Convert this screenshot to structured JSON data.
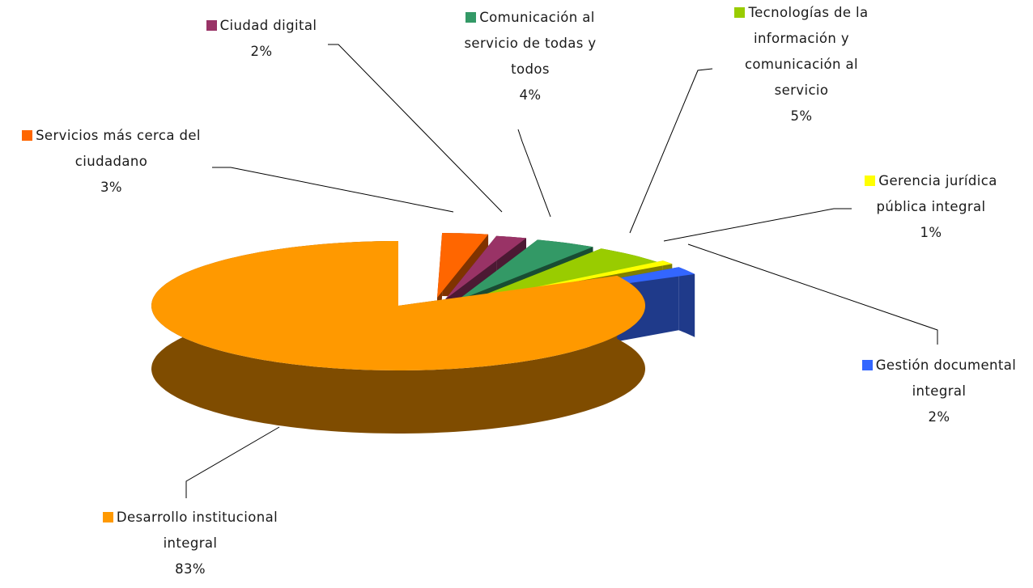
{
  "chart_data": {
    "type": "pie",
    "title": "",
    "slices": [
      {
        "label": "Desarrollo institucional integral",
        "value": 83,
        "pct_label": "83%",
        "color": "#ff9900",
        "side_color": "#7f4c00"
      },
      {
        "label": "Servicios más cerca del ciudadano",
        "value": 3,
        "pct_label": "3%",
        "color": "#ff6600",
        "side_color": "#7f3300"
      },
      {
        "label": "Ciudad digital",
        "value": 2,
        "pct_label": "2%",
        "color": "#993366",
        "side_color": "#4c1933"
      },
      {
        "label": "Comunicación al servicio de todas y todos",
        "value": 4,
        "pct_label": "4%",
        "color": "#339966",
        "side_color": "#194c33"
      },
      {
        "label": "Tecnologías de la información y comunicación al servicio",
        "value": 5,
        "pct_label": "5%",
        "color": "#99cc00",
        "side_color": "#4c6600"
      },
      {
        "label": "Gerencia jurídica pública integral",
        "value": 1,
        "pct_label": "1%",
        "color": "#ffff00",
        "side_color": "#7f7f00"
      },
      {
        "label": "Gestión documental integral",
        "value": 2,
        "pct_label": "2%",
        "color": "#3366ff",
        "side_color": "#1f3a8a"
      }
    ],
    "legend": "none",
    "data_labels": "outside with leader lines",
    "style": "3D exploded pie"
  }
}
